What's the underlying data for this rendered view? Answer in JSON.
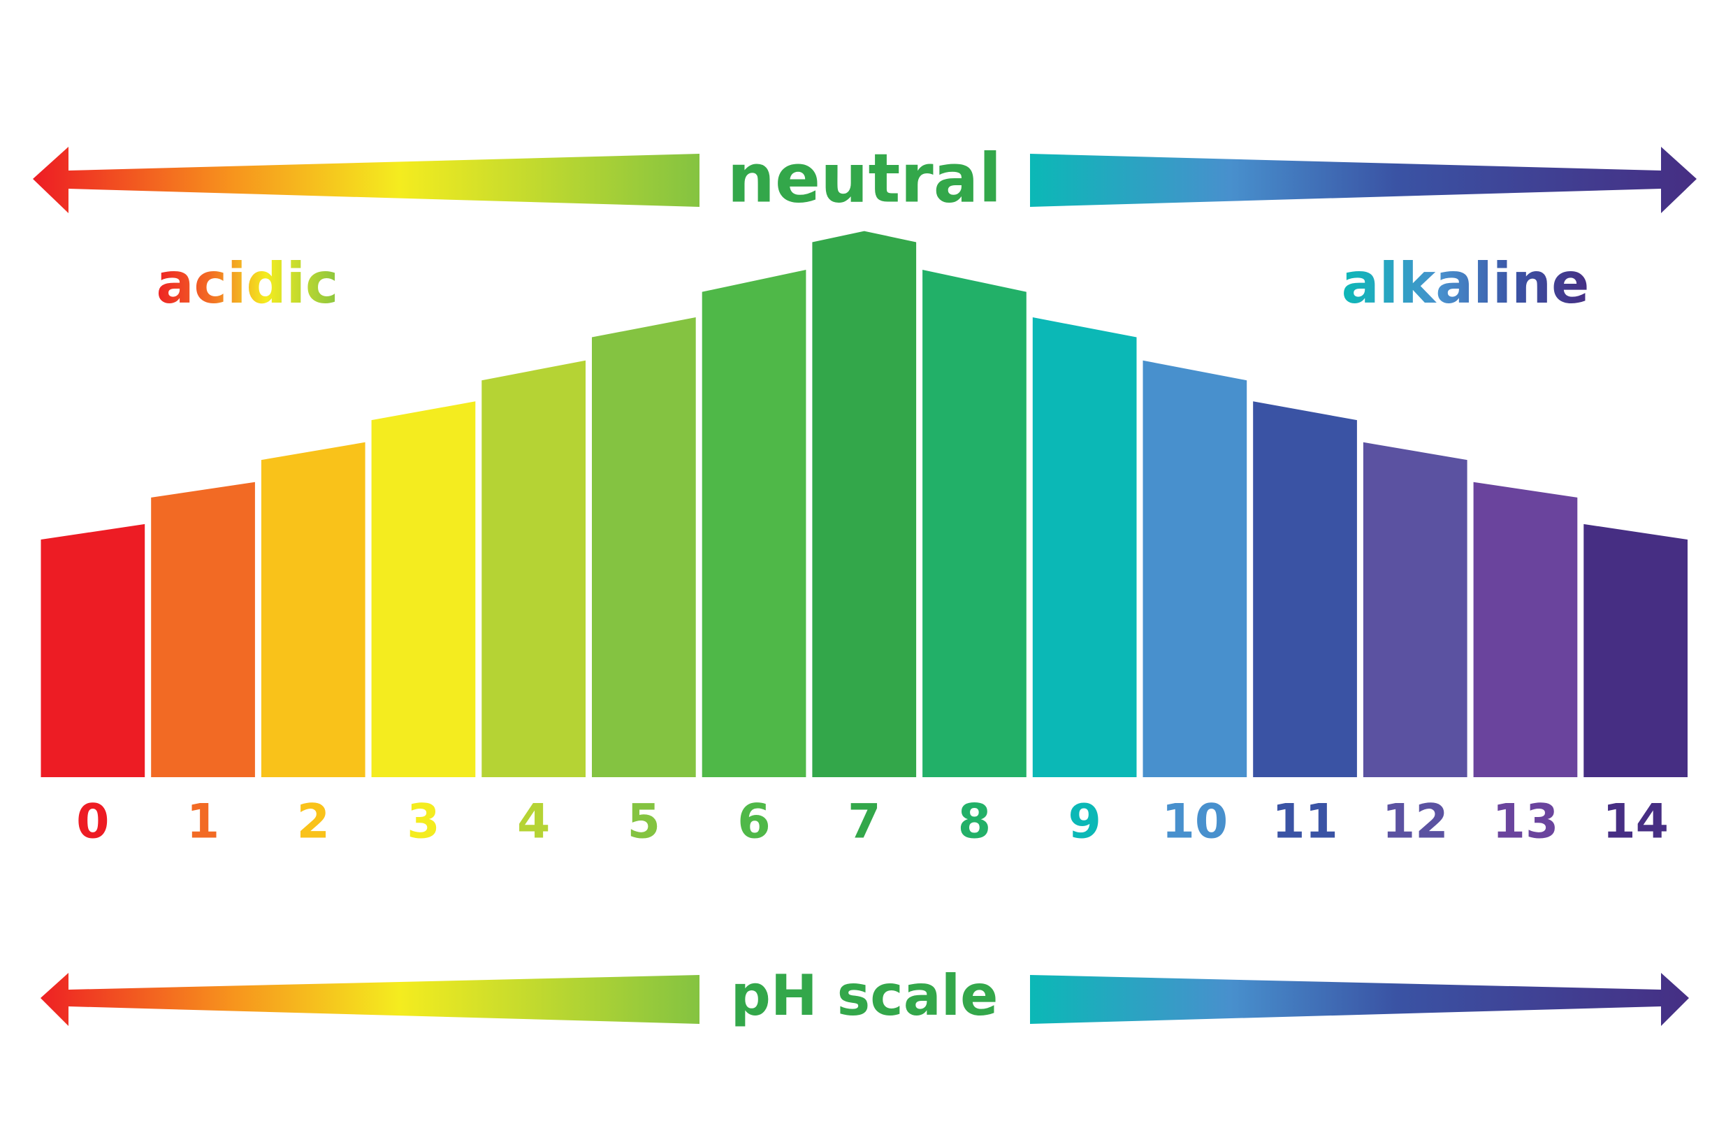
{
  "top_label": "neutral",
  "acidic_label": "acidic",
  "alkaline_label": "alkaline",
  "bottom_label": "pH scale",
  "levels": [
    {
      "label": "0",
      "color": "#ed1c24"
    },
    {
      "label": "1",
      "color": "#f26a24"
    },
    {
      "label": "2",
      "color": "#f9c21a"
    },
    {
      "label": "3",
      "color": "#f4ec1f"
    },
    {
      "label": "4",
      "color": "#b5d334"
    },
    {
      "label": "5",
      "color": "#84c341"
    },
    {
      "label": "6",
      "color": "#4fb848"
    },
    {
      "label": "7",
      "color": "#33a74a"
    },
    {
      "label": "8",
      "color": "#22b068"
    },
    {
      "label": "9",
      "color": "#0bb8b6"
    },
    {
      "label": "10",
      "color": "#4890cd"
    },
    {
      "label": "11",
      "color": "#3a53a4"
    },
    {
      "label": "12",
      "color": "#5b52a1"
    },
    {
      "label": "13",
      "color": "#6a449d"
    },
    {
      "label": "14",
      "color": "#462e83"
    }
  ]
}
